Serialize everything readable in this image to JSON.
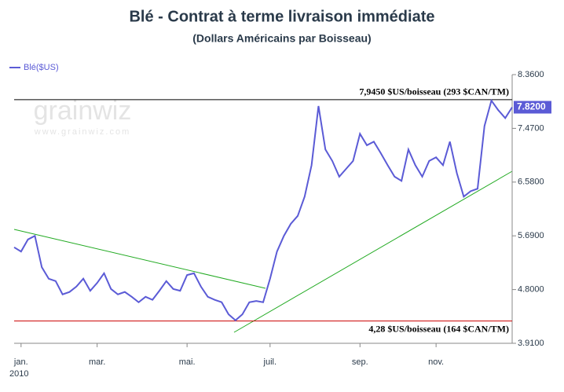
{
  "chart_data": {
    "type": "line",
    "title": "Blé - Contrat à terme livraison immédiate",
    "subtitle": "(Dollars Américains par Boisseau)",
    "watermark": "grainwiz",
    "watermark_url": "www.grainwiz.com",
    "year_label": "2010",
    "categories": [
      null,
      "jan.",
      null,
      null,
      null,
      null,
      null,
      null,
      null,
      null,
      null,
      null,
      "mar.",
      null,
      null,
      null,
      null,
      null,
      null,
      null,
      null,
      null,
      null,
      null,
      null,
      "mai.",
      null,
      null,
      null,
      null,
      null,
      null,
      null,
      null,
      null,
      null,
      null,
      "juil.",
      null,
      null,
      null,
      null,
      null,
      null,
      null,
      null,
      null,
      null,
      null,
      null,
      "sep.",
      null,
      null,
      null,
      null,
      null,
      null,
      null,
      null,
      null,
      null,
      "nov.",
      null,
      null,
      null,
      null,
      null,
      null,
      null,
      null,
      null,
      null,
      null
    ],
    "series": [
      {
        "name": "Blé($US)",
        "color": "#5b5bd6",
        "values": [
          5.5,
          5.43,
          5.63,
          5.69,
          5.17,
          4.98,
          4.94,
          4.72,
          4.76,
          4.85,
          4.98,
          4.78,
          4.91,
          5.07,
          4.81,
          4.72,
          4.76,
          4.68,
          4.59,
          4.68,
          4.63,
          4.78,
          4.94,
          4.81,
          4.78,
          5.04,
          5.07,
          4.85,
          4.68,
          4.63,
          4.59,
          4.39,
          4.29,
          4.39,
          4.59,
          4.61,
          4.59,
          4.98,
          5.43,
          5.69,
          5.89,
          6.02,
          6.34,
          6.86,
          7.84,
          7.12,
          6.93,
          6.67,
          6.8,
          6.93,
          7.38,
          7.19,
          7.25,
          7.06,
          6.86,
          6.67,
          6.6,
          7.12,
          6.86,
          6.67,
          6.93,
          6.99,
          6.86,
          7.25,
          6.73,
          6.34,
          6.43,
          6.47,
          7.51,
          7.93,
          7.77,
          7.64,
          7.82
        ]
      }
    ],
    "current_value": {
      "value": 7.82,
      "label": "7.8200"
    },
    "reference_lines": [
      {
        "value": 7.945,
        "label": "7,9450 $US/boisseau (293 $CAN/TM)",
        "color": "#000000"
      },
      {
        "value": 4.28,
        "label": "4,28 $US/boisseau (164 $CAN/TM)",
        "color": "#cc0000"
      }
    ],
    "ylim": [
      3.91,
      8.36
    ],
    "yticks": [
      {
        "value": 3.91,
        "label": "3.9100"
      },
      {
        "value": 4.8,
        "label": "4.8000"
      },
      {
        "value": 5.69,
        "label": "5.6900"
      },
      {
        "value": 6.58,
        "label": "6.5800"
      },
      {
        "value": 7.47,
        "label": "7.4700"
      },
      {
        "value": 8.36,
        "label": "8.3600"
      }
    ],
    "axis_side": "right"
  }
}
